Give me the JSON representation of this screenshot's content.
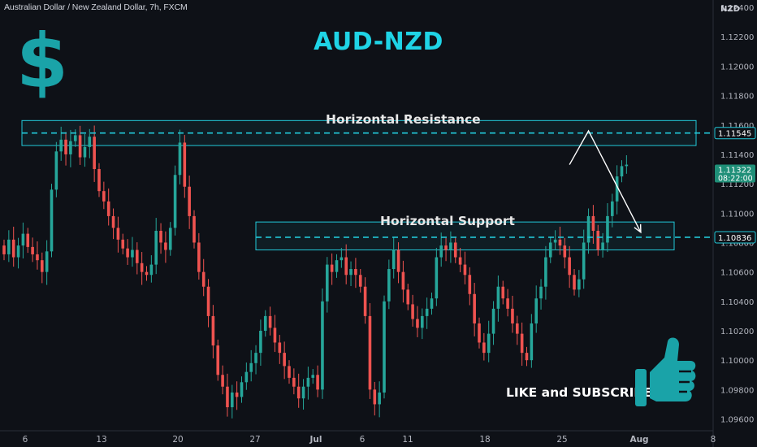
{
  "header": {
    "symbol_label": "Australian Dollar / New Zealand Dollar, 7h, FXCM",
    "title": "AUD-NZD"
  },
  "annotations": {
    "resistance_label": "Horizontal Resistance",
    "support_label": "Horizontal Support",
    "cta_label": "LIKE and SUBSCRIBE",
    "dollar_glyph": "$",
    "thumb_icon": "thumbs-up-icon"
  },
  "colors": {
    "background": "#0e1117",
    "bull": "#26a69a",
    "bear": "#ef5350",
    "accent": "#1fd4e6",
    "zone": "#22c9d9"
  },
  "chart_data": {
    "type": "candlestick",
    "currency": "NZD",
    "y_axis_ticks": [
      "1.12400",
      "1.12200",
      "1.12000",
      "1.11800",
      "1.11600",
      "1.11400",
      "1.11200",
      "1.11000",
      "1.10800",
      "1.10600",
      "1.10400",
      "1.10200",
      "1.10000",
      "1.09800",
      "1.09600"
    ],
    "y_tick_values": [
      1.124,
      1.122,
      1.12,
      1.118,
      1.116,
      1.114,
      1.112,
      1.11,
      1.108,
      1.106,
      1.104,
      1.102,
      1.1,
      1.098,
      1.096
    ],
    "ylim": [
      1.0952,
      1.1245
    ],
    "x_axis_ticks": [
      "6",
      "13",
      "20",
      "27",
      "Jul",
      "6",
      "11",
      "18",
      "25",
      "Aug",
      "8"
    ],
    "price_badges": [
      {
        "value": "1.11545",
        "style": "outline"
      },
      {
        "value": "1.11322",
        "sub": "08:22:00",
        "style": "green"
      },
      {
        "value": "1.10836",
        "style": "outline"
      }
    ],
    "resistance_zone": [
      1.1146,
      1.1163
    ],
    "resistance_line": 1.11545,
    "support_zone": [
      1.1075,
      1.1094
    ],
    "support_line": 1.10836,
    "projection": [
      {
        "bar": 119,
        "price": 1.1133
      },
      {
        "bar": 123,
        "price": 1.1156
      },
      {
        "bar": 134,
        "price": 1.1087
      }
    ],
    "closes": [
      1.1072,
      1.1082,
      1.107,
      1.1078,
      1.1086,
      1.1077,
      1.1072,
      1.1068,
      1.106,
      1.1074,
      1.1116,
      1.1142,
      1.115,
      1.114,
      1.1149,
      1.1153,
      1.1138,
      1.1145,
      1.1152,
      1.113,
      1.1115,
      1.1108,
      1.1098,
      1.109,
      1.1082,
      1.1076,
      1.107,
      1.1075,
      1.1066,
      1.106,
      1.1058,
      1.1065,
      1.1088,
      1.108,
      1.1075,
      1.109,
      1.1126,
      1.1148,
      1.1118,
      1.1098,
      1.108,
      1.106,
      1.105,
      1.103,
      1.101,
      1.099,
      1.0982,
      1.0968,
      1.0978,
      1.0975,
      1.0985,
      1.0992,
      1.0998,
      1.1005,
      1.102,
      1.103,
      1.1022,
      1.1012,
      1.1005,
      1.0996,
      1.0988,
      1.0982,
      1.0974,
      1.0982,
      1.0988,
      1.099,
      1.098,
      1.104,
      1.1065,
      1.106,
      1.1068,
      1.107,
      1.1058,
      1.1062,
      1.1058,
      1.105,
      1.103,
      1.098,
      1.097,
      1.0978,
      1.104,
      1.1062,
      1.1075,
      1.106,
      1.1048,
      1.1038,
      1.1028,
      1.1022,
      1.103,
      1.1035,
      1.1042,
      1.107,
      1.1078,
      1.1075,
      1.108,
      1.107,
      1.1065,
      1.1058,
      1.1045,
      1.1025,
      1.1012,
      1.1005,
      1.1018,
      1.1035,
      1.105,
      1.1042,
      1.1035,
      1.1025,
      1.1018,
      1.1005,
      1.1,
      1.1025,
      1.1042,
      1.105,
      1.107,
      1.108,
      1.1082,
      1.1078,
      1.107,
      1.1058,
      1.1048,
      1.1055,
      1.108,
      1.1098,
      1.1088,
      1.1075,
      1.108,
      1.1098,
      1.1108,
      1.1125,
      1.1132,
      1.1133
    ]
  }
}
